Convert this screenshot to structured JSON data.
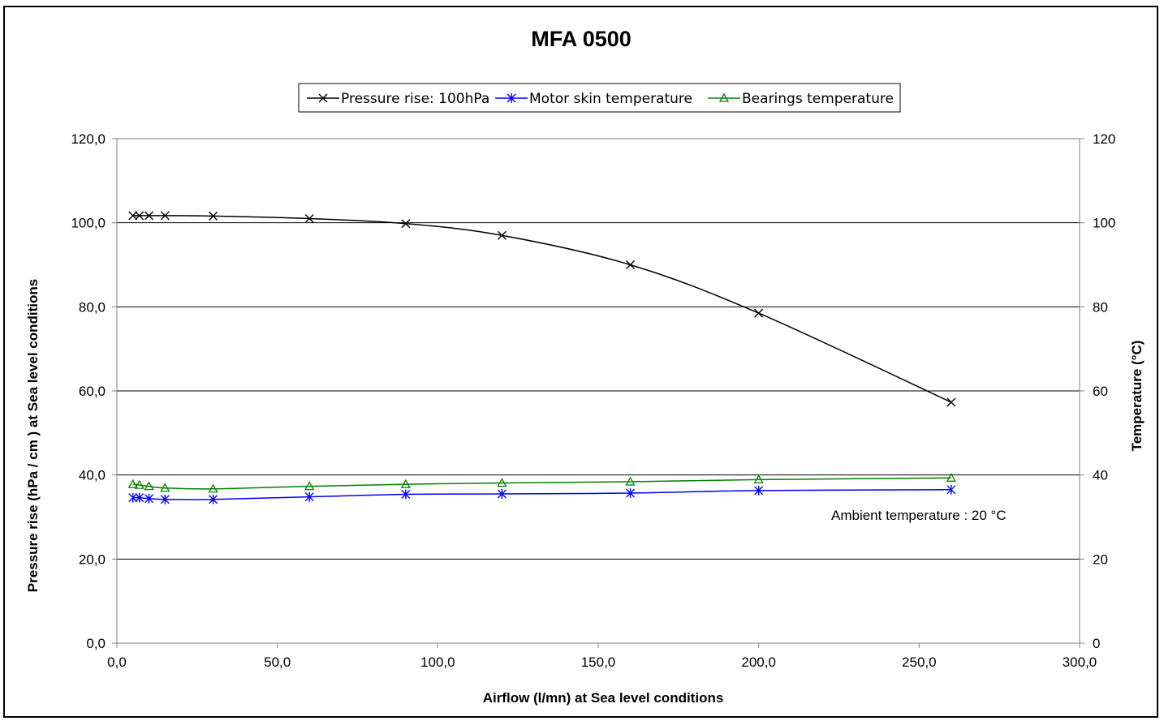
{
  "chart_data": {
    "type": "line",
    "title": "MFA 0500",
    "xlabel": "Airflow (l/mn) at Sea level conditions",
    "ylabel_left": "Pressure rise (hPa / cm ) at Sea level conditions",
    "ylabel_right": "Temperature (°C)",
    "xlim": [
      0,
      300
    ],
    "ylim_left": [
      0,
      120
    ],
    "ylim_right": [
      0,
      120
    ],
    "x_ticks": [
      "0,0",
      "50,0",
      "100,0",
      "150,0",
      "200,0",
      "250,0",
      "300,0"
    ],
    "y_left_ticks": [
      "0,0",
      "20,0",
      "40,0",
      "60,0",
      "80,0",
      "100,0",
      "120,0"
    ],
    "y_right_ticks": [
      "0",
      "20",
      "40",
      "60",
      "80",
      "100",
      "120"
    ],
    "grid": "horizontal",
    "legend_position": "top-center",
    "annotation": "Ambient temperature : 20 °C",
    "series": [
      {
        "name": "Pressure rise: 100hPa",
        "color": "#000000",
        "marker": "x",
        "axis": "left",
        "x": [
          5,
          7,
          10,
          15,
          30,
          60,
          90,
          120,
          160,
          200,
          260
        ],
        "y": [
          101.7,
          101.7,
          101.7,
          101.7,
          101.6,
          101.0,
          99.8,
          97.0,
          90.0,
          78.5,
          57.3
        ]
      },
      {
        "name": "Motor skin temperature",
        "color": "#0000ff",
        "marker": "asterisk",
        "axis": "right",
        "x": [
          5,
          7,
          10,
          15,
          30,
          60,
          90,
          120,
          160,
          200,
          260
        ],
        "y": [
          34.6,
          34.6,
          34.4,
          34.2,
          34.2,
          34.8,
          35.4,
          35.5,
          35.7,
          36.3,
          36.5
        ]
      },
      {
        "name": "Bearings temperature",
        "color": "#008000",
        "marker": "triangle",
        "axis": "right",
        "x": [
          5,
          7,
          10,
          15,
          30,
          60,
          90,
          120,
          160,
          200,
          260
        ],
        "y": [
          37.8,
          37.6,
          37.3,
          36.9,
          36.7,
          37.3,
          37.8,
          38.1,
          38.4,
          38.9,
          39.3
        ]
      }
    ]
  }
}
